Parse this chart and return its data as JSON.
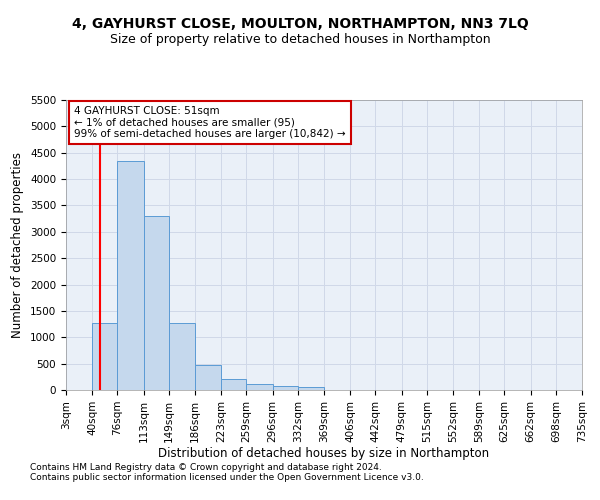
{
  "title": "4, GAYHURST CLOSE, MOULTON, NORTHAMPTON, NN3 7LQ",
  "subtitle": "Size of property relative to detached houses in Northampton",
  "xlabel": "Distribution of detached houses by size in Northampton",
  "ylabel": "Number of detached properties",
  "annotation_line1": "4 GAYHURST CLOSE: 51sqm",
  "annotation_line2": "← 1% of detached houses are smaller (95)",
  "annotation_line3": "99% of semi-detached houses are larger (10,842) →",
  "footer_line1": "Contains HM Land Registry data © Crown copyright and database right 2024.",
  "footer_line2": "Contains public sector information licensed under the Open Government Licence v3.0.",
  "bin_edges": [
    3,
    40,
    76,
    113,
    149,
    186,
    223,
    259,
    296,
    332,
    369,
    406,
    442,
    479,
    515,
    552,
    589,
    625,
    662,
    698,
    735
  ],
  "bar_heights": [
    0,
    1280,
    4350,
    3300,
    1280,
    480,
    200,
    110,
    80,
    50,
    0,
    0,
    0,
    0,
    0,
    0,
    0,
    0,
    0,
    0
  ],
  "bar_color": "#c5d8ed",
  "bar_edge_color": "#5b9bd5",
  "red_line_x": 51,
  "ylim": [
    0,
    5500
  ],
  "yticks": [
    0,
    500,
    1000,
    1500,
    2000,
    2500,
    3000,
    3500,
    4000,
    4500,
    5000,
    5500
  ],
  "background_color": "#ffffff",
  "grid_color": "#d0d8e8",
  "annotation_box_color": "#ffffff",
  "annotation_box_edge_color": "#cc0000",
  "title_fontsize": 10,
  "subtitle_fontsize": 9,
  "axis_label_fontsize": 8.5,
  "tick_fontsize": 7.5,
  "annotation_fontsize": 7.5,
  "footer_fontsize": 6.5
}
